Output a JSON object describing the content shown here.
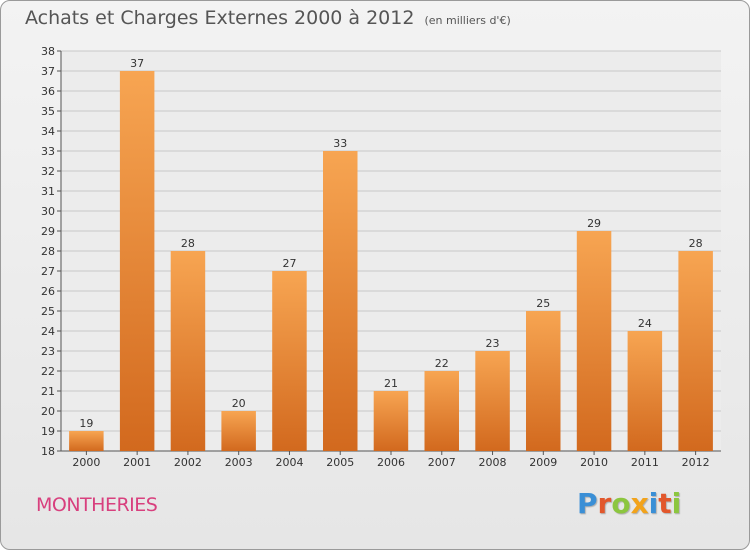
{
  "title": "Achats et Charges Externes 2000 à 2012",
  "subtitle": "(en milliers d'€)",
  "commune": "MONTHERIES",
  "logo": {
    "text": "Proxiti",
    "letters": [
      {
        "ch": "P",
        "color": "#3a8fd6"
      },
      {
        "ch": "r",
        "color": "#e2572c"
      },
      {
        "ch": "o",
        "color": "#8cc63f"
      },
      {
        "ch": "x",
        "color": "#f2a31b"
      },
      {
        "ch": "i",
        "color": "#3a8fd6"
      },
      {
        "ch": "t",
        "color": "#e2572c"
      },
      {
        "ch": "i",
        "color": "#8cc63f"
      }
    ]
  },
  "colors": {
    "bar_top": "#f7a552",
    "bar_bottom": "#d2691e",
    "grid": "#c8c8c8",
    "axis": "#555555"
  },
  "chart_data": {
    "type": "bar",
    "title": "Achats et Charges Externes 2000 à 2012",
    "subtitle": "(en milliers d'€)",
    "xlabel": "",
    "ylabel": "",
    "ylim": [
      18,
      38
    ],
    "yticks": [
      18,
      19,
      20,
      21,
      22,
      23,
      24,
      25,
      26,
      27,
      28,
      29,
      30,
      31,
      32,
      33,
      34,
      35,
      36,
      37,
      38
    ],
    "grid": true,
    "legend": "none",
    "categories": [
      "2000",
      "2001",
      "2002",
      "2003",
      "2004",
      "2005",
      "2006",
      "2007",
      "2008",
      "2009",
      "2010",
      "2011",
      "2012"
    ],
    "values": [
      19,
      37,
      28,
      20,
      27,
      33,
      21,
      22,
      23,
      25,
      29,
      24,
      28
    ]
  }
}
